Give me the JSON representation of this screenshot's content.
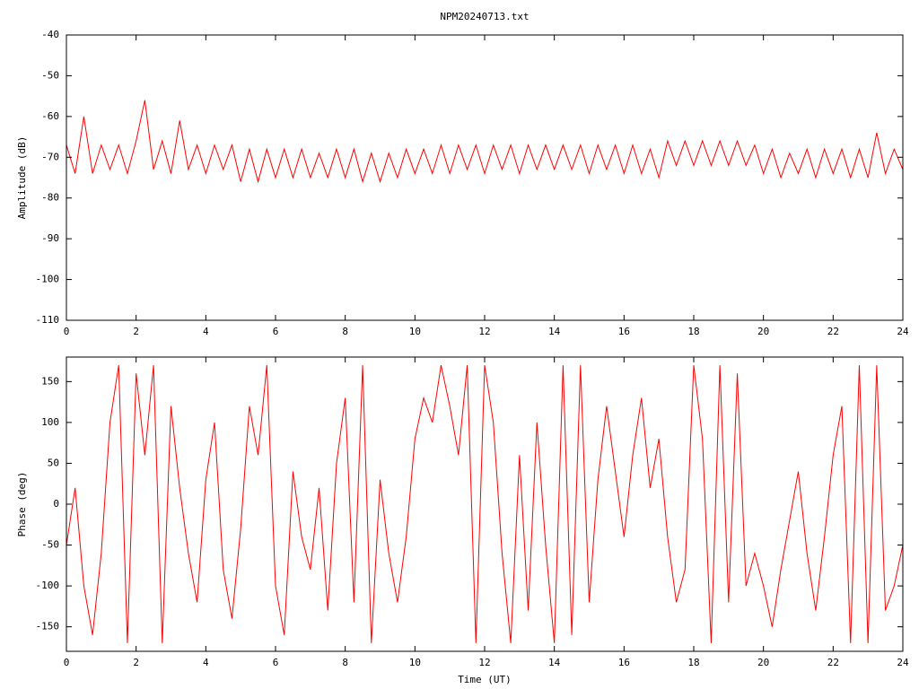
{
  "chart_data": [
    {
      "type": "line",
      "title": "NPM20240713.txt",
      "ylabel": "Amplitude (dB)",
      "xlim": [
        0,
        24
      ],
      "xticks": [
        0,
        2,
        4,
        6,
        8,
        10,
        12,
        14,
        16,
        18,
        20,
        22,
        24
      ],
      "ylim": [
        -110,
        -40
      ],
      "yticks": [
        -40,
        -50,
        -60,
        -70,
        -80,
        -90,
        -100,
        -110
      ],
      "x": [
        0,
        0.25,
        0.5,
        0.75,
        1,
        1.25,
        1.5,
        1.75,
        2,
        2.25,
        2.5,
        2.75,
        3,
        3.25,
        3.5,
        3.75,
        4,
        4.25,
        4.5,
        4.75,
        5,
        5.25,
        5.5,
        5.75,
        6,
        6.25,
        6.5,
        6.75,
        7,
        7.25,
        7.5,
        7.75,
        8,
        8.25,
        8.5,
        8.75,
        9,
        9.25,
        9.5,
        9.75,
        10,
        10.25,
        10.5,
        10.75,
        11,
        11.25,
        11.5,
        11.75,
        12,
        12.25,
        12.5,
        12.75,
        13,
        13.25,
        13.5,
        13.75,
        14,
        14.25,
        14.5,
        14.75,
        15,
        15.25,
        15.5,
        15.75,
        16,
        16.25,
        16.5,
        16.75,
        17,
        17.25,
        17.5,
        17.75,
        18,
        18.25,
        18.5,
        18.75,
        19,
        19.25,
        19.5,
        19.75,
        20,
        20.25,
        20.5,
        20.75,
        21,
        21.25,
        21.5,
        21.75,
        22,
        22.25,
        22.5,
        22.75,
        23,
        23.25,
        23.5,
        23.75,
        24
      ],
      "series": [
        {
          "color": "#ff0000",
          "values": [
            -67,
            -74,
            -60,
            -74,
            -67,
            -73,
            -67,
            -74,
            -66,
            -56,
            -73,
            -66,
            -74,
            -61,
            -73,
            -67,
            -74,
            -67,
            -73,
            -67,
            -76,
            -68,
            -76,
            -68,
            -75,
            -68,
            -75,
            -68,
            -75,
            -69,
            -75,
            -68,
            -75,
            -68,
            -76,
            -69,
            -76,
            -69,
            -75,
            -68,
            -74,
            -68,
            -74,
            -67,
            -74,
            -67,
            -73,
            -67,
            -74,
            -67,
            -73,
            -67,
            -74,
            -67,
            -73,
            -67,
            -73,
            -67,
            -73,
            -67,
            -74,
            -67,
            -73,
            -67,
            -74,
            -67,
            -74,
            -68,
            -75,
            -66,
            -72,
            -66,
            -72,
            -66,
            -72,
            -66,
            -72,
            -66,
            -72,
            -67,
            -74,
            -68,
            -75,
            -69,
            -74,
            -68,
            -75,
            -68,
            -74,
            -68,
            -75,
            -68,
            -75,
            -64,
            -74,
            -68,
            -73
          ]
        }
      ]
    },
    {
      "type": "line",
      "ylabel": "Phase (deg)",
      "xlabel": "Time (UT)",
      "xlim": [
        0,
        24
      ],
      "xticks": [
        0,
        2,
        4,
        6,
        8,
        10,
        12,
        14,
        16,
        18,
        20,
        22,
        24
      ],
      "ylim": [
        -180,
        180
      ],
      "yticks": [
        150,
        100,
        50,
        0,
        -50,
        -100,
        -150
      ],
      "x": [
        0,
        0.25,
        0.5,
        0.75,
        1,
        1.25,
        1.5,
        1.75,
        2,
        2.25,
        2.5,
        2.75,
        3,
        3.25,
        3.5,
        3.75,
        4,
        4.25,
        4.5,
        4.75,
        5,
        5.25,
        5.5,
        5.75,
        6,
        6.25,
        6.5,
        6.75,
        7,
        7.25,
        7.5,
        7.75,
        8,
        8.25,
        8.5,
        8.75,
        9,
        9.25,
        9.5,
        9.75,
        10,
        10.25,
        10.5,
        10.75,
        11,
        11.25,
        11.5,
        11.75,
        12,
        12.25,
        12.5,
        12.75,
        13,
        13.25,
        13.5,
        13.75,
        14,
        14.25,
        14.5,
        14.75,
        15,
        15.25,
        15.5,
        15.75,
        16,
        16.25,
        16.5,
        16.75,
        17,
        17.25,
        17.5,
        17.75,
        18,
        18.25,
        18.5,
        18.75,
        19,
        19.25,
        19.5,
        19.75,
        20,
        20.25,
        20.5,
        20.75,
        21,
        21.25,
        21.5,
        21.75,
        22,
        22.25,
        22.5,
        22.75,
        23,
        23.25,
        23.5,
        23.75,
        24
      ],
      "series": [
        {
          "color": "#ff0000",
          "values": [
            -50,
            20,
            -100,
            -160,
            -60,
            100,
            170,
            -170,
            160,
            60,
            170,
            -170,
            120,
            20,
            -60,
            -120,
            30,
            100,
            -80,
            -140,
            -30,
            120,
            60,
            170,
            -100,
            -160,
            40,
            -40,
            -80,
            20,
            -130,
            50,
            130,
            -120,
            170,
            -170,
            30,
            -60,
            -120,
            -40,
            80,
            130,
            100,
            170,
            120,
            60,
            170,
            -170,
            170,
            100,
            -60,
            -170,
            60,
            -130,
            100,
            -50,
            -170,
            170,
            -160,
            170,
            -120,
            30,
            120,
            40,
            -40,
            60,
            130,
            20,
            80,
            -40,
            -120,
            -80,
            170,
            80,
            -170,
            170,
            -120,
            160,
            -100,
            -60,
            -100,
            -150,
            -80,
            -20,
            40,
            -60,
            -130,
            -40,
            60,
            120,
            -170,
            170,
            -170,
            170,
            -130,
            -100,
            -50
          ]
        }
      ]
    }
  ]
}
